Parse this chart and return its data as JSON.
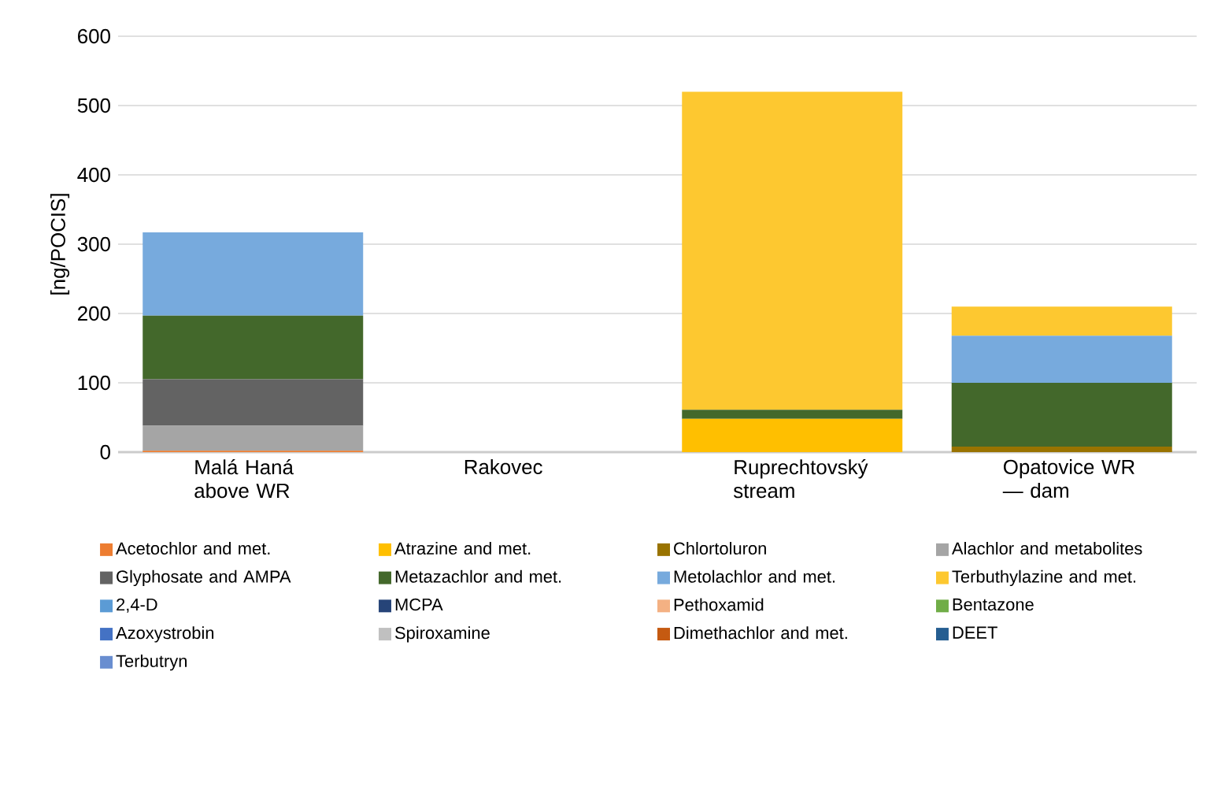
{
  "chart_data": {
    "type": "bar",
    "stacked": true,
    "ylabel": "[ng/POCIS]",
    "categories": [
      "Malá Haná above WR",
      "Rakovec",
      "Ruprechtovský stream",
      "Opatovice WR — dam"
    ],
    "ylim": [
      0,
      600
    ],
    "yticks": [
      0,
      100,
      200,
      300,
      400,
      500,
      600
    ],
    "grid": "y",
    "legend": "bottom",
    "series": [
      {
        "name": "Acetochlor and met.",
        "color": "#ed7d31",
        "values": [
          2,
          0,
          0,
          0
        ]
      },
      {
        "name": "Atrazine and met.",
        "color": "#ffbf00",
        "values": [
          0,
          0,
          48,
          0
        ]
      },
      {
        "name": "Chlortoluron",
        "color": "#997300",
        "values": [
          0,
          0,
          0,
          8
        ]
      },
      {
        "name": "Alachlor and metabolites",
        "color": "#a5a5a5",
        "values": [
          36,
          0,
          0,
          0
        ]
      },
      {
        "name": "Glyphosate and AMPA",
        "color": "#636363",
        "values": [
          67,
          0,
          0,
          0
        ]
      },
      {
        "name": "Metazachlor and met.",
        "color": "#43682b",
        "values": [
          92,
          0,
          13,
          92
        ]
      },
      {
        "name": "Metolachlor and met.",
        "color": "#77aadd",
        "values": [
          120,
          0,
          0,
          68
        ]
      },
      {
        "name": "Terbuthylazine and met.",
        "color": "#fdc830",
        "values": [
          0,
          0,
          459,
          42
        ]
      },
      {
        "name": "2,4-D",
        "color": "#5b9bd5",
        "values": [
          0,
          0,
          0,
          0
        ]
      },
      {
        "name": "MCPA",
        "color": "#264478",
        "values": [
          0,
          0,
          0,
          0
        ]
      },
      {
        "name": "Pethoxamid",
        "color": "#f4b183",
        "values": [
          0,
          0,
          0,
          0
        ]
      },
      {
        "name": "Bentazone",
        "color": "#70ad47",
        "values": [
          0,
          0,
          0,
          0
        ]
      },
      {
        "name": "Azoxystrobin",
        "color": "#4472c4",
        "values": [
          0,
          0,
          0,
          0
        ]
      },
      {
        "name": "Spiroxamine",
        "color": "#c0c0c0",
        "values": [
          0,
          0,
          0,
          0
        ]
      },
      {
        "name": "Dimethachlor and met.",
        "color": "#c55a11",
        "values": [
          0,
          0,
          0,
          0
        ]
      },
      {
        "name": "DEET",
        "color": "#255e91",
        "values": [
          0,
          0,
          0,
          0
        ]
      },
      {
        "name": "Terbutryn",
        "color": "#698ed0",
        "values": [
          0,
          0,
          0,
          0
        ]
      }
    ]
  }
}
